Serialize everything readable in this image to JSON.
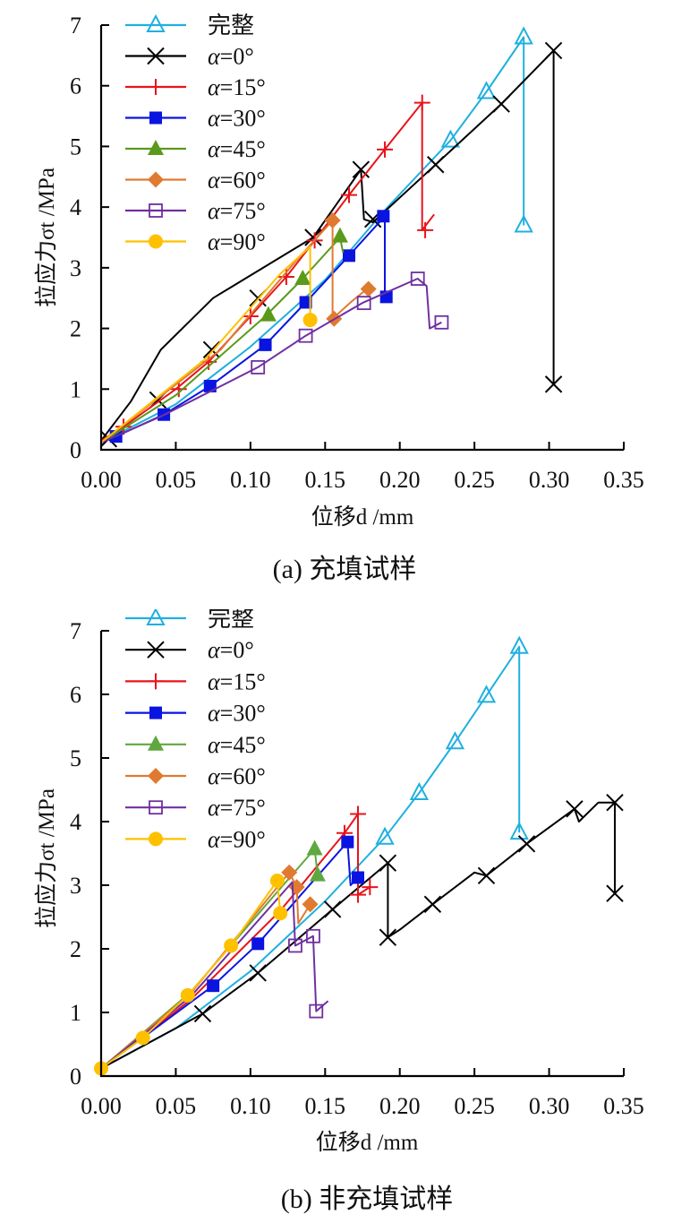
{
  "chart_data": [
    {
      "type": "line",
      "title": "(a)  充填试样",
      "xlabel": "位移d /mm",
      "ylabel": "拉应力σt /MPa",
      "xlim": [
        0,
        0.35
      ],
      "ylim": [
        0,
        7
      ],
      "xticks": [
        "0.00",
        "0.05",
        "0.10",
        "0.15",
        "0.20",
        "0.25",
        "0.30",
        "0.35"
      ],
      "yticks": [
        "0",
        "1",
        "2",
        "3",
        "4",
        "5",
        "6",
        "7"
      ],
      "grid": false,
      "legend_position": "top-left",
      "series": [
        {
          "name": "完整",
          "color": "#1fb0e0",
          "marker": "triangle-open",
          "line": [
            [
              0,
              0.12
            ],
            [
              0.05,
              0.75
            ],
            [
              0.1,
              1.7
            ],
            [
              0.15,
              2.8
            ],
            [
              0.19,
              3.95
            ],
            [
              0.234,
              5.1
            ],
            [
              0.258,
              5.9
            ],
            [
              0.283,
              6.8
            ],
            [
              0.283,
              3.7
            ]
          ],
          "markers": [
            [
              0.234,
              5.1
            ],
            [
              0.258,
              5.9
            ],
            [
              0.283,
              6.8
            ],
            [
              0.283,
              3.7
            ]
          ]
        },
        {
          "name": "α=0°",
          "color": "#000000",
          "marker": "x",
          "line": [
            [
              0,
              0.15
            ],
            [
              0.02,
              0.8
            ],
            [
              0.04,
              1.65
            ],
            [
              0.075,
              2.5
            ],
            [
              0.142,
              3.5
            ],
            [
              0.174,
              4.62
            ],
            [
              0.176,
              3.8
            ],
            [
              0.182,
              3.75
            ],
            [
              0.224,
              4.7
            ],
            [
              0.268,
              5.7
            ],
            [
              0.303,
              6.58
            ],
            [
              0.303,
              1.08
            ]
          ],
          "markers": [
            [
              0.005,
              0.18
            ],
            [
              0.038,
              0.82
            ],
            [
              0.074,
              1.65
            ],
            [
              0.105,
              2.5
            ],
            [
              0.142,
              3.5
            ],
            [
              0.174,
              4.62
            ],
            [
              0.182,
              3.8
            ],
            [
              0.224,
              4.7
            ],
            [
              0.268,
              5.7
            ],
            [
              0.303,
              6.58
            ],
            [
              0.303,
              1.08
            ]
          ]
        },
        {
          "name": "α=15°",
          "color": "#e8141b",
          "marker": "plus",
          "line": [
            [
              0,
              0.15
            ],
            [
              0.015,
              0.38
            ],
            [
              0.05,
              1.0
            ],
            [
              0.072,
              1.45
            ],
            [
              0.1,
              2.2
            ],
            [
              0.124,
              2.85
            ],
            [
              0.143,
              3.45
            ],
            [
              0.166,
              4.2
            ],
            [
              0.19,
              4.95
            ],
            [
              0.215,
              5.72
            ],
            [
              0.215,
              3.62
            ],
            [
              0.223,
              3.88
            ]
          ],
          "markers": [
            [
              0.015,
              0.38
            ],
            [
              0.052,
              1.0
            ],
            [
              0.072,
              1.45
            ],
            [
              0.1,
              2.2
            ],
            [
              0.124,
              2.85
            ],
            [
              0.143,
              3.45
            ],
            [
              0.166,
              4.2
            ],
            [
              0.19,
              4.95
            ],
            [
              0.215,
              5.72
            ],
            [
              0.217,
              3.62
            ]
          ]
        },
        {
          "name": "α=30°",
          "color": "#0a14e0",
          "marker": "square",
          "line": [
            [
              0,
              0.12
            ],
            [
              0.01,
              0.22
            ],
            [
              0.042,
              0.58
            ],
            [
              0.073,
              1.05
            ],
            [
              0.11,
              1.73
            ],
            [
              0.137,
              2.43
            ],
            [
              0.166,
              3.2
            ],
            [
              0.19,
              3.85
            ],
            [
              0.19,
              2.52
            ]
          ],
          "markers": [
            [
              0.01,
              0.22
            ],
            [
              0.042,
              0.58
            ],
            [
              0.073,
              1.05
            ],
            [
              0.11,
              1.73
            ],
            [
              0.137,
              2.43
            ],
            [
              0.166,
              3.2
            ],
            [
              0.189,
              3.85
            ],
            [
              0.191,
              2.52
            ]
          ]
        },
        {
          "name": "α=45°",
          "color": "#5a9a1a",
          "marker": "triangle",
          "line": [
            [
              0,
              0.12
            ],
            [
              0.05,
              0.9
            ],
            [
              0.11,
              2.2
            ],
            [
              0.135,
              2.82
            ],
            [
              0.16,
              3.5
            ],
            [
              0.162,
              3.25
            ]
          ],
          "markers": [
            [
              0.112,
              2.22
            ],
            [
              0.135,
              2.82
            ],
            [
              0.16,
              3.52
            ]
          ]
        },
        {
          "name": "α=60°",
          "color": "#e07a30",
          "marker": "diamond",
          "line": [
            [
              0,
              0.12
            ],
            [
              0.08,
              1.65
            ],
            [
              0.13,
              3.1
            ],
            [
              0.155,
              3.78
            ],
            [
              0.155,
              2.16
            ],
            [
              0.168,
              2.45
            ],
            [
              0.178,
              2.65
            ]
          ],
          "markers": [
            [
              0.155,
              3.78
            ],
            [
              0.156,
              2.16
            ],
            [
              0.179,
              2.65
            ]
          ]
        },
        {
          "name": "α=75°",
          "color": "#7030a0",
          "marker": "square-open",
          "line": [
            [
              0,
              0.12
            ],
            [
              0.04,
              0.55
            ],
            [
              0.105,
              1.36
            ],
            [
              0.137,
              1.88
            ],
            [
              0.175,
              2.42
            ],
            [
              0.212,
              2.82
            ],
            [
              0.218,
              2.7
            ],
            [
              0.22,
              2.0
            ],
            [
              0.228,
              2.1
            ]
          ],
          "markers": [
            [
              0.105,
              1.36
            ],
            [
              0.137,
              1.88
            ],
            [
              0.176,
              2.42
            ],
            [
              0.212,
              2.82
            ],
            [
              0.228,
              2.1
            ]
          ]
        },
        {
          "name": "α=90°",
          "color": "#ffc000",
          "marker": "circle",
          "line": [
            [
              0,
              0.12
            ],
            [
              0.07,
              1.5
            ],
            [
              0.12,
              2.9
            ],
            [
              0.14,
              3.35
            ],
            [
              0.14,
              2.14
            ]
          ],
          "markers": [
            [
              0.14,
              2.14
            ]
          ]
        }
      ]
    },
    {
      "type": "line",
      "title": "(b)  非充填试样",
      "xlabel": "位移d /mm",
      "ylabel": "拉应力σt /MPa",
      "xlim": [
        0,
        0.35
      ],
      "ylim": [
        0,
        7
      ],
      "xticks": [
        "0.00",
        "0.05",
        "0.10",
        "0.15",
        "0.20",
        "0.25",
        "0.30",
        "0.35"
      ],
      "yticks": [
        "0",
        "1",
        "2",
        "3",
        "4",
        "5",
        "6",
        "7"
      ],
      "grid": false,
      "legend_position": "top-left",
      "series": [
        {
          "name": "完整",
          "color": "#1fb0e0",
          "marker": "triangle-open",
          "line": [
            [
              0,
              0.12
            ],
            [
              0.05,
              0.75
            ],
            [
              0.1,
              1.65
            ],
            [
              0.15,
              2.75
            ],
            [
              0.19,
              3.75
            ],
            [
              0.213,
              4.45
            ],
            [
              0.237,
              5.25
            ],
            [
              0.258,
              5.98
            ],
            [
              0.28,
              6.75
            ],
            [
              0.28,
              3.83
            ]
          ],
          "markers": [
            [
              0.19,
              3.75
            ],
            [
              0.213,
              4.45
            ],
            [
              0.237,
              5.25
            ],
            [
              0.258,
              5.98
            ],
            [
              0.28,
              6.75
            ],
            [
              0.28,
              3.83
            ]
          ]
        },
        {
          "name": "α=0°",
          "color": "#000000",
          "marker": "x",
          "line": [
            [
              0,
              0.12
            ],
            [
              0.068,
              0.98
            ],
            [
              0.105,
              1.62
            ],
            [
              0.155,
              2.62
            ],
            [
              0.192,
              3.35
            ],
            [
              0.192,
              2.18
            ],
            [
              0.2,
              2.3
            ],
            [
              0.222,
              2.7
            ],
            [
              0.25,
              3.2
            ],
            [
              0.258,
              3.15
            ],
            [
              0.285,
              3.65
            ],
            [
              0.317,
              4.2
            ],
            [
              0.32,
              4.0
            ],
            [
              0.333,
              4.3
            ],
            [
              0.344,
              4.3
            ],
            [
              0.344,
              2.87
            ]
          ],
          "markers": [
            [
              0.068,
              0.98
            ],
            [
              0.105,
              1.62
            ],
            [
              0.155,
              2.62
            ],
            [
              0.192,
              3.35
            ],
            [
              0.192,
              2.18
            ],
            [
              0.222,
              2.7
            ],
            [
              0.258,
              3.15
            ],
            [
              0.285,
              3.65
            ],
            [
              0.317,
              4.2
            ],
            [
              0.344,
              4.3
            ],
            [
              0.344,
              2.87
            ]
          ]
        },
        {
          "name": "α=15°",
          "color": "#e8141b",
          "marker": "plus",
          "line": [
            [
              0,
              0.12
            ],
            [
              0.06,
              1.2
            ],
            [
              0.12,
              2.6
            ],
            [
              0.163,
              3.82
            ],
            [
              0.172,
              4.12
            ],
            [
              0.172,
              2.85
            ],
            [
              0.18,
              2.97
            ]
          ],
          "markers": [
            [
              0.163,
              3.82
            ],
            [
              0.172,
              4.12
            ],
            [
              0.172,
              2.85
            ],
            [
              0.18,
              2.97
            ]
          ]
        },
        {
          "name": "α=30°",
          "color": "#0a14e0",
          "marker": "square",
          "line": [
            [
              0,
              0.12
            ],
            [
              0.075,
              1.42
            ],
            [
              0.105,
              2.08
            ],
            [
              0.165,
              3.68
            ],
            [
              0.167,
              3.0
            ],
            [
              0.172,
              3.12
            ]
          ],
          "markers": [
            [
              0.075,
              1.42
            ],
            [
              0.105,
              2.08
            ],
            [
              0.165,
              3.68
            ],
            [
              0.172,
              3.12
            ]
          ]
        },
        {
          "name": "α=45°",
          "color": "#5fa840",
          "marker": "triangle",
          "line": [
            [
              0,
              0.12
            ],
            [
              0.06,
              1.32
            ],
            [
              0.12,
              2.95
            ],
            [
              0.143,
              3.57
            ],
            [
              0.145,
              3.16
            ]
          ],
          "markers": [
            [
              0.143,
              3.57
            ],
            [
              0.145,
              3.16
            ]
          ]
        },
        {
          "name": "α=60°",
          "color": "#e07a30",
          "marker": "diamond",
          "line": [
            [
              0,
              0.12
            ],
            [
              0.06,
              1.3
            ],
            [
              0.126,
              3.2
            ],
            [
              0.131,
              2.97
            ],
            [
              0.132,
              2.4
            ],
            [
              0.14,
              2.7
            ]
          ],
          "markers": [
            [
              0.126,
              3.2
            ],
            [
              0.131,
              2.97
            ],
            [
              0.14,
              2.7
            ]
          ]
        },
        {
          "name": "α=75°",
          "color": "#7030a0",
          "marker": "square-open",
          "line": [
            [
              0,
              0.12
            ],
            [
              0.06,
              1.25
            ],
            [
              0.128,
              3.05
            ],
            [
              0.13,
              2.05
            ],
            [
              0.142,
              2.2
            ],
            [
              0.144,
              1.02
            ],
            [
              0.152,
              1.18
            ]
          ],
          "markers": [
            [
              0.13,
              2.05
            ],
            [
              0.142,
              2.2
            ],
            [
              0.144,
              1.02
            ]
          ]
        },
        {
          "name": "α=90°",
          "color": "#ffc000",
          "marker": "circle",
          "line": [
            [
              0,
              0.12
            ],
            [
              0.028,
              0.6
            ],
            [
              0.058,
              1.27
            ],
            [
              0.087,
              2.05
            ],
            [
              0.118,
              3.07
            ],
            [
              0.12,
              2.56
            ]
          ],
          "markers": [
            [
              0,
              0.12
            ],
            [
              0.028,
              0.6
            ],
            [
              0.058,
              1.27
            ],
            [
              0.087,
              2.05
            ],
            [
              0.118,
              3.07
            ],
            [
              0.12,
              2.56
            ]
          ]
        }
      ]
    }
  ]
}
